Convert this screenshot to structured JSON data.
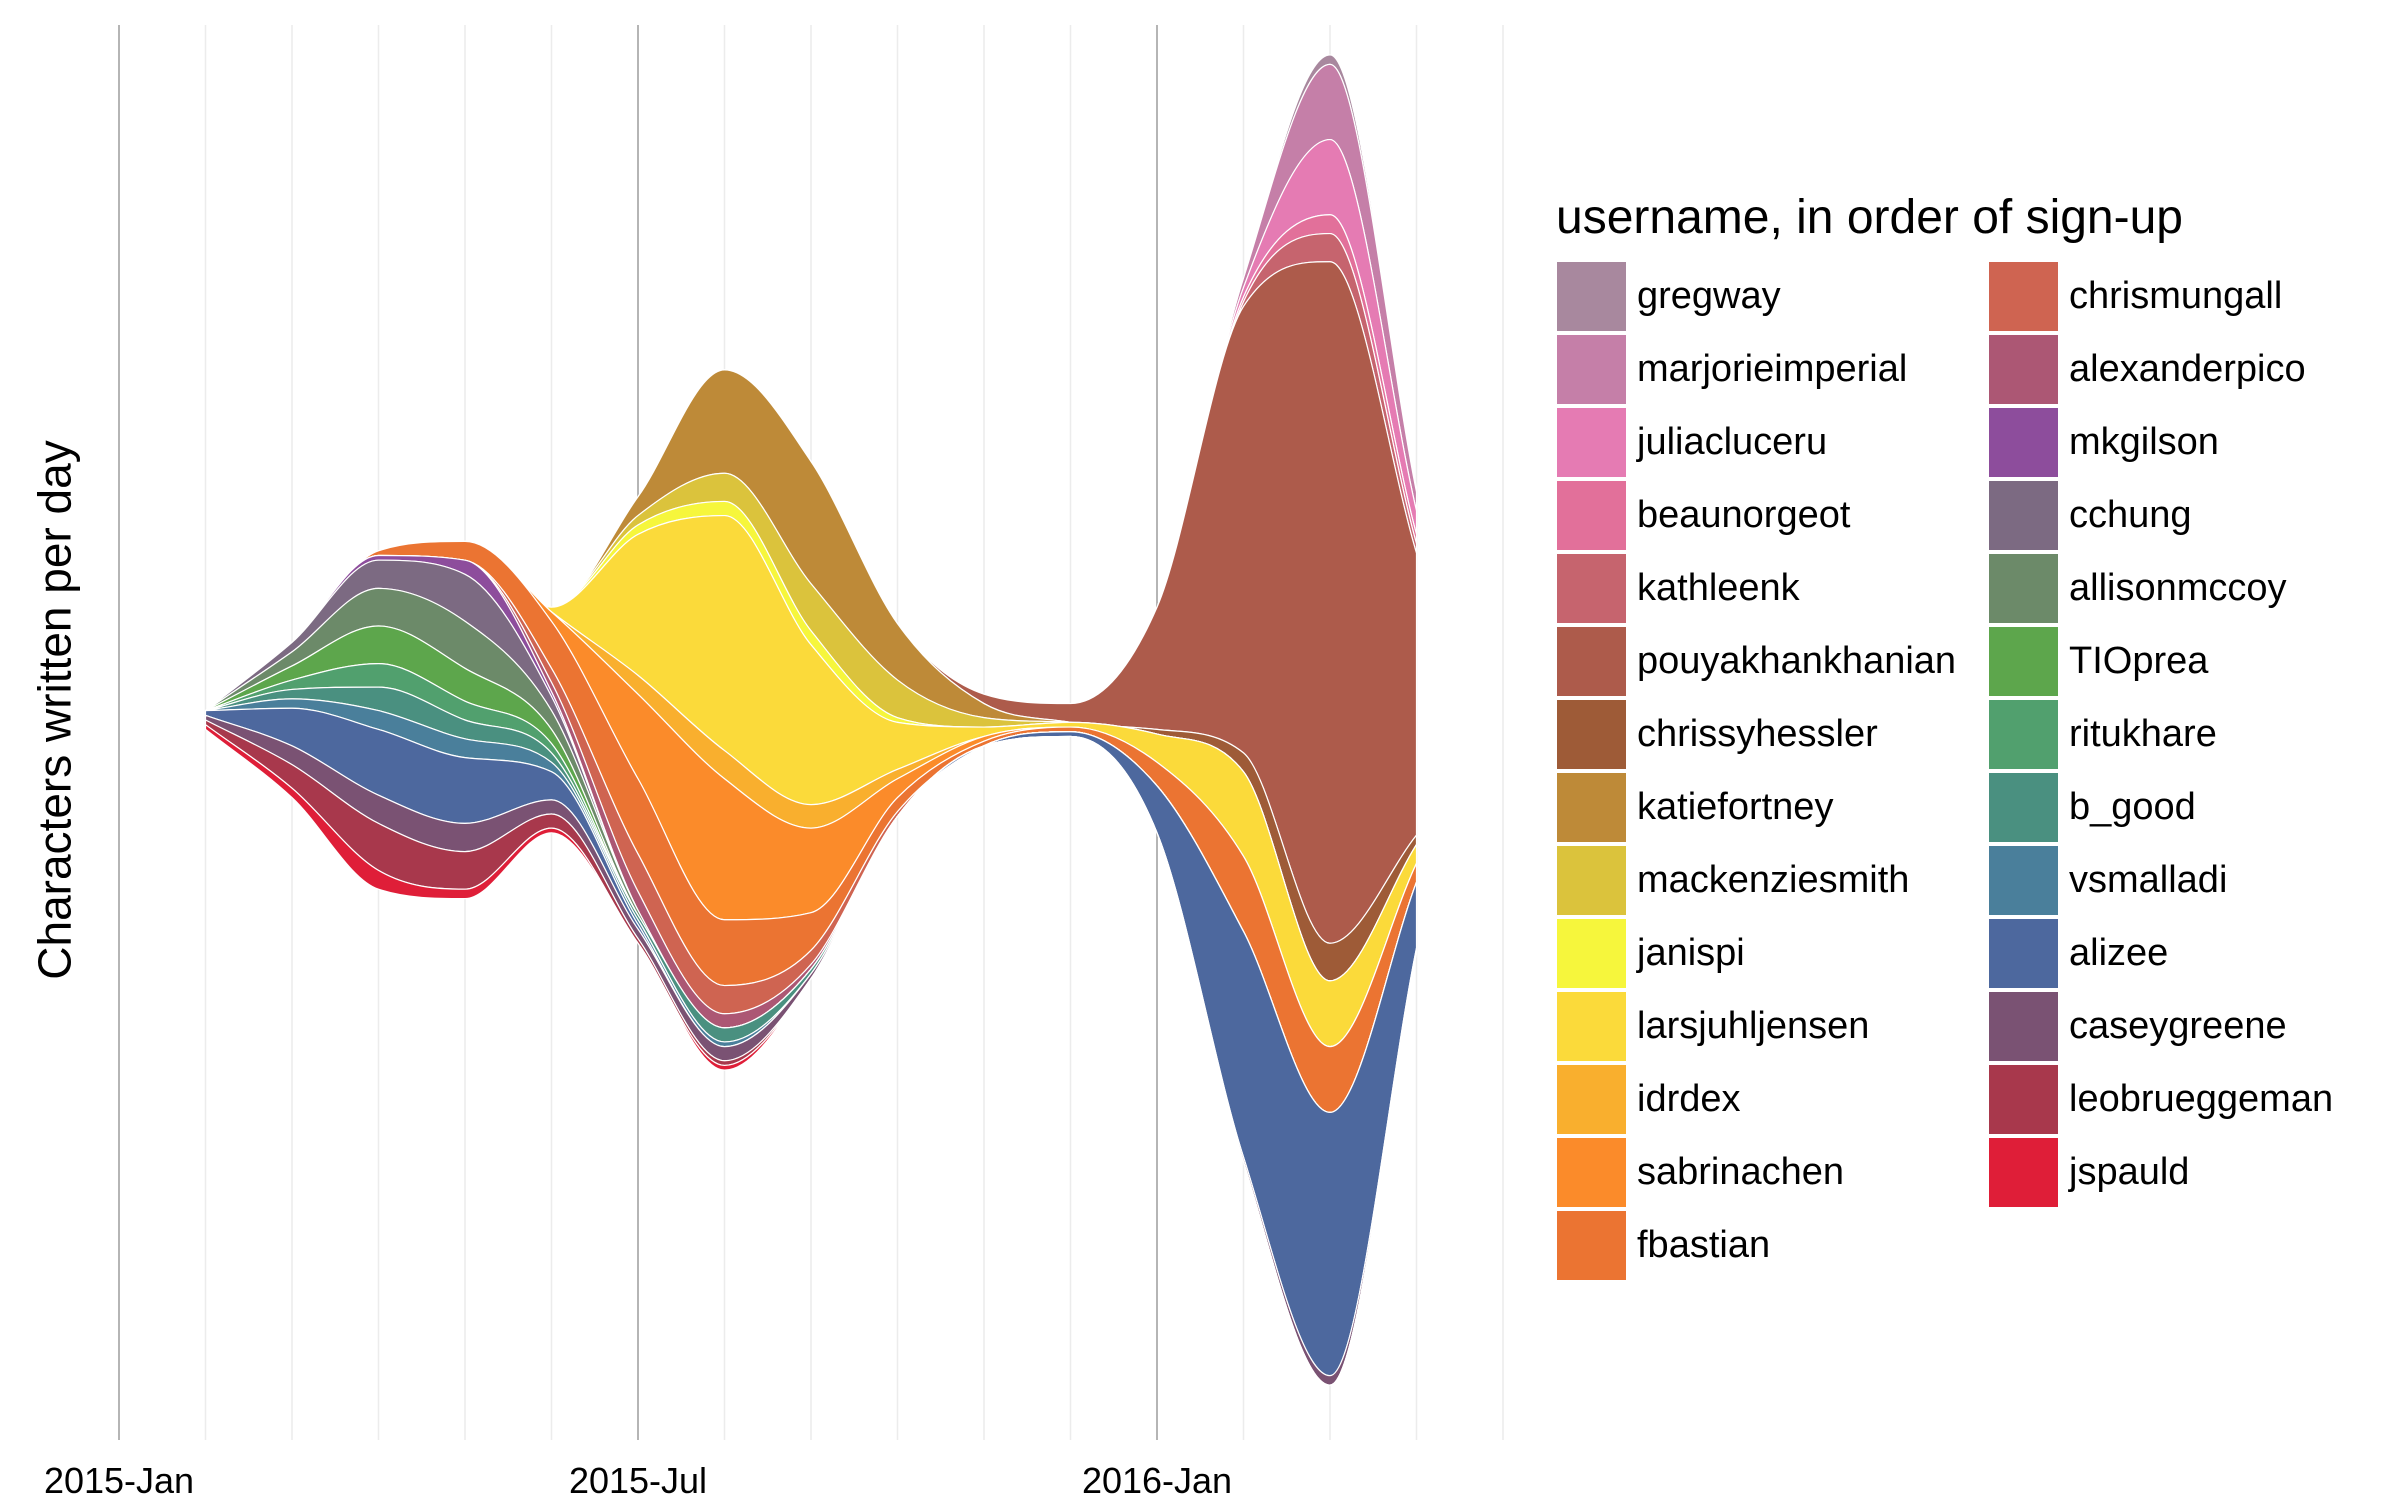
{
  "chart_data": {
    "type": "area",
    "subtype": "streamgraph",
    "ylabel": "Characters written per day",
    "xlabel": "",
    "grid": true,
    "legend_position": "right",
    "legend_title": "username, in order of sign-up",
    "x_ticks": [
      "2015-Jan",
      "2015-Jul",
      "2016-Jan"
    ],
    "x": [
      "2015-02",
      "2015-03",
      "2015-04",
      "2015-05",
      "2015-06",
      "2015-07",
      "2015-08",
      "2015-09",
      "2015-10",
      "2015-11",
      "2015-12",
      "2016-01",
      "2016-02",
      "2016-03",
      "2016-04"
    ],
    "series": [
      {
        "name": "gregway",
        "color": "#A8889E",
        "values": [
          0,
          0,
          0,
          0,
          0,
          0,
          0,
          0,
          0,
          0,
          0,
          0,
          0,
          2,
          1
        ]
      },
      {
        "name": "marjorieimperial",
        "color": "#C57FA8",
        "values": [
          0,
          0,
          0,
          0,
          0,
          0,
          0,
          0,
          0,
          0,
          0,
          0,
          2,
          16,
          4
        ]
      },
      {
        "name": "juliacluceru",
        "color": "#E57BB3",
        "values": [
          0,
          0,
          0,
          0,
          0,
          0,
          0,
          0,
          0,
          0,
          0,
          0,
          2,
          16,
          5
        ]
      },
      {
        "name": "beaunorgeot",
        "color": "#E2709A",
        "values": [
          0,
          0,
          0,
          0,
          0,
          0,
          0,
          0,
          0,
          0,
          0,
          0,
          1,
          4,
          2
        ]
      },
      {
        "name": "kathleenk",
        "color": "#C6646E",
        "values": [
          0,
          0,
          0,
          0,
          0,
          0,
          0,
          0,
          0,
          0,
          0,
          0,
          1,
          6,
          2
        ]
      },
      {
        "name": "pouyakhankhanian",
        "color": "#AD5B4B",
        "values": [
          0,
          0,
          0,
          0,
          0,
          0,
          0,
          0,
          0,
          2,
          4,
          26,
          95,
          145,
          60
        ]
      },
      {
        "name": "chrissyhessler",
        "color": "#9E5B37",
        "values": [
          0,
          0,
          0,
          0,
          0,
          0,
          0,
          0,
          0,
          0,
          0,
          1,
          4,
          8,
          2
        ]
      },
      {
        "name": "katiefortney",
        "color": "#BE8A38",
        "values": [
          0,
          0,
          0,
          0,
          0,
          4,
          22,
          26,
          12,
          3,
          0,
          0,
          0,
          0,
          0
        ]
      },
      {
        "name": "mackenziesmith",
        "color": "#DBC33C",
        "values": [
          0,
          0,
          0,
          0,
          0,
          2,
          6,
          10,
          8,
          2,
          0,
          0,
          0,
          0,
          0
        ]
      },
      {
        "name": "janispi",
        "color": "#F6F63C",
        "values": [
          0,
          0,
          0,
          0,
          0,
          2,
          3,
          3,
          1,
          0,
          0,
          0,
          0,
          0,
          0
        ]
      },
      {
        "name": "larsjuhljensen",
        "color": "#FBDA3A",
        "values": [
          0,
          0,
          0,
          0,
          1,
          30,
          50,
          34,
          10,
          2,
          1,
          6,
          18,
          14,
          4
        ]
      },
      {
        "name": "idrdex",
        "color": "#F9AF2E",
        "values": [
          0,
          0,
          0,
          0,
          0,
          4,
          6,
          5,
          2,
          0,
          0,
          0,
          0,
          0,
          0
        ]
      },
      {
        "name": "sabrinachen",
        "color": "#FB8B2A",
        "values": [
          0,
          0,
          0,
          0,
          2,
          18,
          30,
          18,
          4,
          1,
          0,
          0,
          0,
          0,
          0
        ]
      },
      {
        "name": "fbastian",
        "color": "#EB7432",
        "values": [
          0,
          0,
          1,
          4,
          10,
          16,
          14,
          8,
          3,
          1,
          1,
          5,
          16,
          14,
          4
        ]
      },
      {
        "name": "chrismungall",
        "color": "#CF6451",
        "values": [
          0,
          0,
          0,
          0,
          3,
          8,
          6,
          3,
          1,
          0,
          0,
          0,
          0,
          0,
          0
        ]
      },
      {
        "name": "alexanderpico",
        "color": "#AC5774",
        "values": [
          0,
          0,
          0,
          0,
          2,
          4,
          3,
          1,
          0,
          0,
          0,
          0,
          0,
          0,
          0
        ]
      },
      {
        "name": "mkgilson",
        "color": "#8D4D9C",
        "values": [
          0,
          0,
          1,
          3,
          1,
          0,
          0,
          0,
          0,
          0,
          0,
          0,
          0,
          0,
          0
        ]
      },
      {
        "name": "cchung",
        "color": "#7C6A82",
        "values": [
          0,
          2,
          6,
          10,
          3,
          0,
          0,
          0,
          0,
          0,
          0,
          0,
          0,
          0,
          0
        ]
      },
      {
        "name": "allisonmccoy",
        "color": "#6C8A69",
        "values": [
          0,
          3,
          8,
          10,
          4,
          1,
          0,
          0,
          0,
          0,
          0,
          0,
          0,
          0,
          0
        ]
      },
      {
        "name": "TIOprea",
        "color": "#5DA64C",
        "values": [
          0,
          3,
          8,
          7,
          3,
          0,
          0,
          0,
          0,
          0,
          0,
          0,
          0,
          0,
          0
        ]
      },
      {
        "name": "ritukhare",
        "color": "#51A06E",
        "values": [
          0,
          2,
          5,
          4,
          2,
          0,
          0,
          0,
          0,
          0,
          0,
          0,
          0,
          0,
          0
        ]
      },
      {
        "name": "b_good",
        "color": "#4A9080",
        "values": [
          0,
          2,
          5,
          4,
          2,
          1,
          3,
          1,
          0,
          0,
          0,
          0,
          0,
          0,
          0
        ]
      },
      {
        "name": "vsmalladi",
        "color": "#4A7F9B",
        "values": [
          0,
          2,
          4,
          4,
          2,
          1,
          1,
          0,
          0,
          0,
          0,
          0,
          0,
          0,
          0
        ]
      },
      {
        "name": "alizee",
        "color": "#4D689E",
        "values": [
          1,
          8,
          14,
          14,
          6,
          1,
          0,
          0,
          0,
          0,
          1,
          10,
          48,
          56,
          14
        ]
      },
      {
        "name": "caseygreene",
        "color": "#7A5273",
        "values": [
          1,
          4,
          6,
          6,
          3,
          2,
          3,
          1,
          0,
          0,
          0,
          0,
          1,
          2,
          1
        ]
      },
      {
        "name": "leobrueggeman",
        "color": "#A8384C",
        "values": [
          1,
          5,
          10,
          8,
          3,
          1,
          1,
          0,
          0,
          0,
          0,
          0,
          0,
          0,
          0
        ]
      },
      {
        "name": "jspauld",
        "color": "#DF1E38",
        "values": [
          1,
          2,
          4,
          2,
          1,
          0,
          1,
          0,
          0,
          0,
          0,
          0,
          0,
          0,
          0
        ]
      }
    ]
  }
}
